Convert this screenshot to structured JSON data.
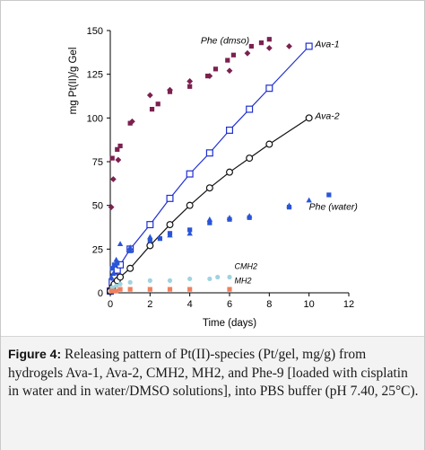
{
  "chart_data": {
    "type": "scatter",
    "xlabel": "Time (days)",
    "ylabel": "mg Pt(II)/g Gel",
    "xlim": [
      0,
      12
    ],
    "ylim": [
      0,
      150
    ],
    "xticks": [
      "0",
      "2",
      "4",
      "6",
      "8",
      "10",
      "12"
    ],
    "yticks": [
      "0",
      "25",
      "50",
      "75",
      "100",
      "125",
      "150"
    ],
    "grid": false,
    "legend": "none (series labelled directly on plot)",
    "series": [
      {
        "name": "Phe (dmso)",
        "marker": "square",
        "filled": true,
        "line": false,
        "color": "#7b2150",
        "x": [
          0.1,
          0.35,
          0.5,
          1.0,
          2.1,
          2.4,
          3.0,
          4.0,
          4.9,
          5.3,
          5.9,
          6.2,
          7.1,
          7.6,
          8.0
        ],
        "y": [
          77,
          82,
          84,
          97,
          105,
          108,
          115,
          118,
          124,
          128,
          133,
          136,
          141,
          143,
          145
        ]
      },
      {
        "name": "Phe (dmso)",
        "marker": "diamond",
        "filled": true,
        "line": false,
        "color": "#7b2150",
        "x": [
          0.05,
          0.15,
          0.4,
          1.1,
          2.0,
          3.0,
          4.0,
          5.0,
          6.0,
          6.9,
          8.0,
          9.0
        ],
        "y": [
          49,
          65,
          76,
          98,
          113,
          116,
          121,
          124,
          127,
          137,
          140,
          141
        ]
      },
      {
        "name": "Ava-1",
        "marker": "square",
        "filled": false,
        "line": true,
        "color": "#1f2fd0",
        "x": [
          0,
          0.1,
          0.2,
          0.35,
          0.5,
          1.0,
          2.0,
          3.0,
          4.0,
          5.0,
          6.0,
          7.0,
          8.0,
          10.0
        ],
        "y": [
          1,
          6,
          9,
          13,
          16,
          25,
          39,
          54,
          68,
          80,
          93,
          105,
          117,
          141
        ]
      },
      {
        "name": "Ava-2",
        "marker": "circle",
        "filled": false,
        "line": true,
        "color": "#111111",
        "x": [
          0,
          0.1,
          0.2,
          0.35,
          0.5,
          1.0,
          2.0,
          3.0,
          4.0,
          5.0,
          6.0,
          7.0,
          8.0,
          10.0
        ],
        "y": [
          1,
          3,
          5,
          7,
          9,
          14,
          27,
          39,
          50,
          60,
          69,
          77,
          85,
          100
        ]
      },
      {
        "name": "Phe (water)",
        "marker": "square",
        "filled": true,
        "line": false,
        "color": "#2a55d8",
        "x": [
          0.1,
          0.2,
          0.35,
          1.0,
          2.0,
          2.5,
          3.0,
          4.0,
          5.0,
          6.0,
          7.0,
          9.0,
          11.0
        ],
        "y": [
          14,
          16,
          17,
          24,
          30,
          31,
          34,
          36,
          40,
          42,
          43,
          49,
          56
        ]
      },
      {
        "name": "Phe (water)",
        "marker": "triangle",
        "filled": true,
        "line": false,
        "color": "#2a55d8",
        "x": [
          0.05,
          0.15,
          0.3,
          0.5,
          1.0,
          2.0,
          3.0,
          4.0,
          5.0,
          6.0,
          7.0,
          9.0,
          10.0
        ],
        "y": [
          9,
          11,
          19,
          28,
          26,
          32,
          33,
          34,
          42,
          43,
          44,
          50,
          53
        ]
      },
      {
        "name": "CMH2",
        "marker": "circle",
        "filled": true,
        "line": false,
        "color": "#9fd3df",
        "x": [
          0.1,
          0.3,
          0.5,
          1.0,
          2.0,
          3.0,
          4.0,
          5.0,
          5.4,
          6.0
        ],
        "y": [
          3,
          4,
          5,
          6,
          7,
          7,
          8,
          8,
          9,
          9
        ]
      },
      {
        "name": "MH2",
        "marker": "square",
        "filled": true,
        "line": false,
        "color": "#ee8060",
        "x": [
          0.05,
          0.15,
          0.3,
          0.5,
          1.0,
          2.0,
          3.0,
          4.0,
          6.0
        ],
        "y": [
          1,
          1,
          1,
          2,
          2,
          2,
          2,
          2,
          2
        ]
      }
    ],
    "annotations": [
      {
        "text": "Phe (dmso)",
        "at": [
          4.55,
          142.5
        ]
      },
      {
        "text": "Ava-1",
        "at": [
          10.3,
          140.5
        ]
      },
      {
        "text": "Ava-2",
        "at": [
          10.3,
          99.5
        ]
      },
      {
        "text": "Phe (water)",
        "at": [
          10.0,
          47.5
        ]
      },
      {
        "text": "CMH2",
        "at": [
          6.25,
          13.5
        ]
      },
      {
        "text": "MH2",
        "at": [
          6.25,
          5.5
        ]
      }
    ]
  },
  "caption": {
    "label": "Figure 4:",
    "text": " Releasing pattern of Pt(II)-species (Pt/gel, mg/g) from hydrogels Ava-1, Ava-2, CMH2, MH2, and Phe-9 [loaded with cisplatin in water and in water/DMSO solutions], into PBS buffer (pH 7.40, 25°C)."
  }
}
